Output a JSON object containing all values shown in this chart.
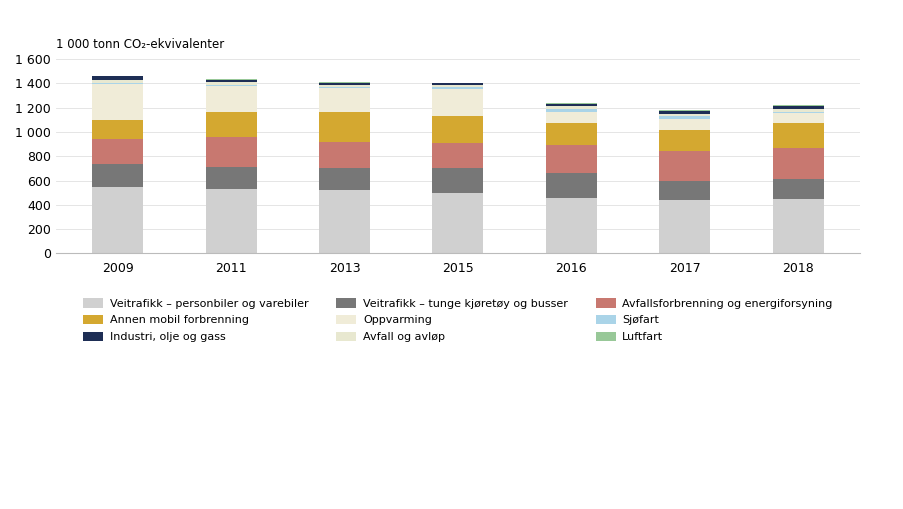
{
  "years": [
    "2009",
    "2011",
    "2013",
    "2015",
    "2016",
    "2017",
    "2018"
  ],
  "categories": [
    "Veitrafikk – personbiler og varebiler",
    "Veitrafikk – tunge kjøretøy og busser",
    "Avfallsforbrenning og energiforsyning",
    "Annen mobil forbrenning",
    "Oppvarming",
    "Sjøfart",
    "Avfall og avløp",
    "Industri, olje og gass",
    "Luftfart"
  ],
  "colors": [
    "#d0d0d0",
    "#777777",
    "#c87870",
    "#d4a830",
    "#f0ecd8",
    "#aad4e8",
    "#e8e8d0",
    "#1e2e55",
    "#98c898"
  ],
  "data": {
    "Veitrafikk – personbiler og varebiler": [
      550,
      530,
      520,
      500,
      460,
      440,
      445
    ],
    "Veitrafikk – tunge kjøretøy og busser": [
      185,
      185,
      185,
      200,
      200,
      160,
      170
    ],
    "Avfallsforbrenning og energiforsyning": [
      205,
      245,
      215,
      205,
      230,
      240,
      250
    ],
    "Annen mobil forbrenning": [
      155,
      205,
      240,
      225,
      185,
      175,
      205
    ],
    "Oppvarming": [
      295,
      210,
      200,
      220,
      85,
      95,
      85
    ],
    "Sjøfart": [
      12,
      12,
      8,
      20,
      30,
      20,
      12
    ],
    "Avfall og avløp": [
      25,
      20,
      15,
      15,
      20,
      20,
      20
    ],
    "Industri, olje og gass": [
      30,
      20,
      22,
      15,
      20,
      25,
      28
    ],
    "Luftfart": [
      5,
      5,
      5,
      5,
      5,
      5,
      5
    ]
  },
  "ylabel": "1 000 tonn CO₂-ekvivalenter",
  "ylim": [
    0,
    1600
  ],
  "yticks": [
    0,
    200,
    400,
    600,
    800,
    1000,
    1200,
    1400,
    1600
  ],
  "background_color": "#ffffff",
  "bar_width": 0.45,
  "legend_order": [
    0,
    3,
    7,
    1,
    4,
    6,
    2,
    5,
    8
  ]
}
